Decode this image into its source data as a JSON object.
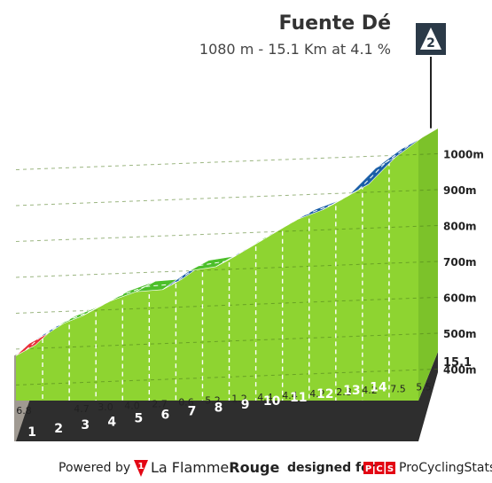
{
  "header": {
    "title": "Fuente Dé",
    "subtitle": "1080 m - 15.1 Km at 4.1 %",
    "category_badge": "2"
  },
  "chart_data": {
    "type": "area",
    "segment_gradients": [
      6.8,
      4.7,
      3.0,
      4.0,
      2.7,
      0.6,
      5.2,
      1.2,
      4.4,
      4.4,
      4.2,
      2.8,
      4.2,
      7.5,
      5.5,
      4.4
    ],
    "km_markers": [
      "1",
      "2",
      "3",
      "4",
      "5",
      "6",
      "7",
      "8",
      "9",
      "10",
      "11",
      "12",
      "13",
      "14"
    ],
    "end_distance": "15.1",
    "y_ticks": [
      "400m",
      "500m",
      "600m",
      "700m",
      "800m",
      "900m",
      "1000m"
    ],
    "y_tick_values": [
      400,
      500,
      600,
      700,
      800,
      900,
      1000
    ],
    "profile_km": [
      0,
      0.5,
      1.5,
      2.5,
      3.5,
      4.5,
      5.5,
      6.5,
      7.5,
      8.5,
      9.5,
      10.5,
      11.5,
      12.5,
      13.5,
      14.5,
      15.1
    ],
    "profile_elevation": [
      467,
      501,
      548,
      578,
      618,
      645,
      651,
      703,
      715,
      759,
      803,
      845,
      873,
      915,
      990,
      1045,
      1071
    ],
    "x_range": [
      0,
      15.1
    ],
    "y_range": [
      280,
      1100
    ],
    "segment_colors": [
      "#e8303a",
      "#1b5fa8",
      "#4cbf2a",
      "#4cbf2a",
      "#4cbf2a",
      "#4cbf2a",
      "#1b5fa8",
      "#4cbf2a",
      "#1b5fa8",
      "#4cbf2a",
      "#4cbf2a",
      "#1b5fa8",
      "#e8303a",
      "#1b5fa8",
      "#1b5fa8",
      "#e8303a"
    ],
    "fill_color": "#8ed431",
    "base_color": "#2e2e2e",
    "grid": true
  },
  "footer": {
    "powered_by": "Powered by",
    "logo_digit": "1",
    "brand_la": "La Flamme",
    "brand_rouge": "Rouge",
    "designed_for": "designed for",
    "pcs_logo": "PCS",
    "pcs_name": "ProCyclingStats",
    "brand_red": "#e30613"
  }
}
